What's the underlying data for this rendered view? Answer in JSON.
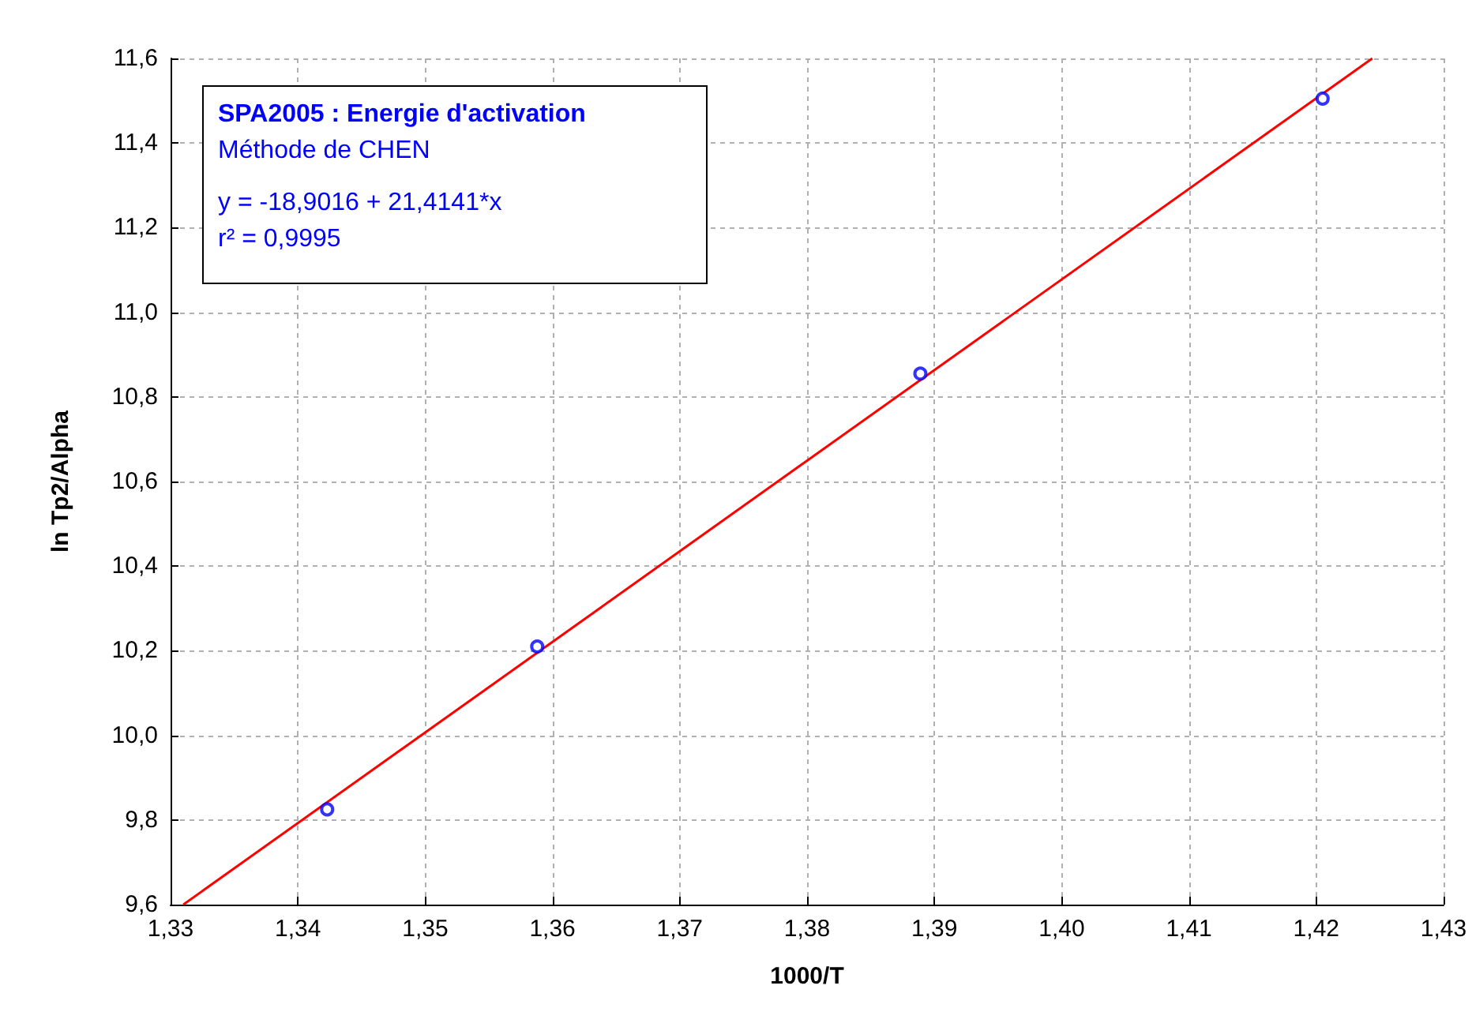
{
  "chart_data": {
    "type": "scatter",
    "xlabel": "1000/T",
    "ylabel": "ln Tp2/Alpha",
    "xlim": [
      1.33,
      1.43
    ],
    "xticks": [
      {
        "value": 1.33,
        "label": "1,33"
      },
      {
        "value": 1.34,
        "label": "1,34"
      },
      {
        "value": 1.35,
        "label": "1,35"
      },
      {
        "value": 1.36,
        "label": "1,36"
      },
      {
        "value": 1.37,
        "label": "1,37"
      },
      {
        "value": 1.38,
        "label": "1,38"
      },
      {
        "value": 1.39,
        "label": "1,39"
      },
      {
        "value": 1.4,
        "label": "1,40"
      },
      {
        "value": 1.41,
        "label": "1,41"
      },
      {
        "value": 1.42,
        "label": "1,42"
      },
      {
        "value": 1.43,
        "label": "1,43"
      }
    ],
    "ylim": [
      9.6,
      11.6
    ],
    "yticks": [
      {
        "value": 9.6,
        "label": "9,6"
      },
      {
        "value": 9.8,
        "label": "9,8"
      },
      {
        "value": 10.0,
        "label": "10,0"
      },
      {
        "value": 10.2,
        "label": "10,2"
      },
      {
        "value": 10.4,
        "label": "10,4"
      },
      {
        "value": 10.6,
        "label": "10,6"
      },
      {
        "value": 10.8,
        "label": "10,8"
      },
      {
        "value": 11.0,
        "label": "11,0"
      },
      {
        "value": 11.2,
        "label": "11,2"
      },
      {
        "value": 11.4,
        "label": "11,4"
      },
      {
        "value": 11.6,
        "label": "11,6"
      }
    ],
    "grid": true,
    "series": [
      {
        "color": "#0000ff",
        "marker": "circle",
        "x": [
          1.3423,
          1.3588,
          1.3889,
          1.4205
        ],
        "values": [
          9.825,
          10.21,
          10.855,
          11.505
        ]
      },
      {
        "type": "line",
        "color": "#ff0000",
        "marker": "none",
        "line_style": "solid",
        "x": [
          1.331,
          1.4244
        ],
        "values": [
          9.6,
          11.6
        ]
      }
    ],
    "annotations": [
      "SPA2005 : Energie d'activation",
      "Méthode de CHEN",
      "y = -18,9016 + 21,4141*x",
      "r² = 0,9995"
    ]
  }
}
